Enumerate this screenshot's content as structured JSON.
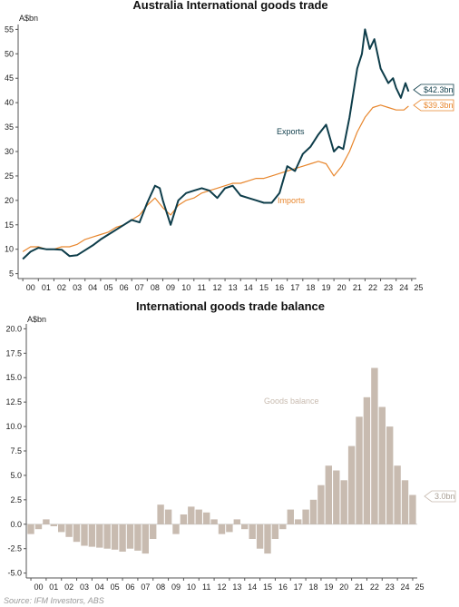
{
  "source": "Source: IFM Investors, ABS",
  "colors": {
    "exports": "#0e3d4a",
    "imports": "#e8872e",
    "balance": "#c8bbb0",
    "axis": "#555555"
  },
  "chart_data": [
    {
      "type": "line",
      "title": "Australia International goods trade",
      "ylabel": "A$bn",
      "ylim": [
        4,
        56
      ],
      "yticks": [
        5,
        10,
        15,
        20,
        25,
        30,
        35,
        40,
        45,
        50,
        55
      ],
      "xlim": [
        1999.7,
        2025.3
      ],
      "xtick_labels": [
        "00",
        "01",
        "02",
        "03",
        "04",
        "05",
        "06",
        "07",
        "08",
        "09",
        "10",
        "11",
        "12",
        "13",
        "14",
        "15",
        "16",
        "17",
        "18",
        "19",
        "20",
        "21",
        "22",
        "23",
        "24",
        "25"
      ],
      "series": [
        {
          "name": "Exports",
          "end_label": "$42.3bn",
          "x": [
            2000.0,
            2000.5,
            2001.0,
            2001.5,
            2002.0,
            2002.5,
            2003.0,
            2003.5,
            2004.0,
            2004.5,
            2005.0,
            2005.5,
            2006.0,
            2006.5,
            2007.0,
            2007.5,
            2008.0,
            2008.5,
            2008.8,
            2009.0,
            2009.5,
            2010.0,
            2010.5,
            2011.0,
            2011.5,
            2012.0,
            2012.5,
            2013.0,
            2013.5,
            2014.0,
            2014.5,
            2015.0,
            2015.5,
            2016.0,
            2016.5,
            2017.0,
            2017.5,
            2018.0,
            2018.5,
            2019.0,
            2019.5,
            2020.0,
            2020.3,
            2020.6,
            2021.0,
            2021.5,
            2021.8,
            2022.0,
            2022.3,
            2022.6,
            2023.0,
            2023.5,
            2023.8,
            2024.0,
            2024.3,
            2024.6,
            2024.8
          ],
          "values": [
            8.0,
            9.5,
            10.3,
            10.0,
            10.0,
            9.9,
            8.6,
            8.8,
            9.8,
            10.8,
            12.0,
            13.0,
            14.0,
            15.0,
            16.0,
            15.5,
            19.5,
            23.0,
            22.5,
            20.0,
            15.0,
            20.0,
            21.5,
            22.0,
            22.5,
            22.0,
            20.5,
            22.5,
            23.0,
            21.0,
            20.5,
            20.0,
            19.5,
            19.5,
            21.5,
            27.0,
            26.0,
            29.5,
            31.0,
            33.5,
            35.5,
            30.0,
            31.0,
            30.5,
            37.0,
            47.0,
            50.0,
            55.0,
            51.0,
            53.0,
            47.0,
            44.0,
            45.0,
            43.0,
            41.0,
            44.0,
            42.3
          ]
        },
        {
          "name": "Imports",
          "end_label": "$39.3bn",
          "x": [
            2000.0,
            2000.5,
            2001.0,
            2001.5,
            2002.0,
            2002.5,
            2003.0,
            2003.5,
            2004.0,
            2004.5,
            2005.0,
            2005.5,
            2006.0,
            2006.5,
            2007.0,
            2007.5,
            2008.0,
            2008.5,
            2009.0,
            2009.5,
            2010.0,
            2010.5,
            2011.0,
            2011.5,
            2012.0,
            2012.5,
            2013.0,
            2013.5,
            2014.0,
            2014.5,
            2015.0,
            2015.5,
            2016.0,
            2016.5,
            2017.0,
            2017.5,
            2018.0,
            2018.5,
            2019.0,
            2019.5,
            2020.0,
            2020.5,
            2021.0,
            2021.5,
            2022.0,
            2022.5,
            2023.0,
            2023.5,
            2024.0,
            2024.5,
            2024.8
          ],
          "values": [
            9.5,
            10.5,
            10.5,
            10.0,
            10.0,
            10.5,
            10.5,
            11.0,
            12.0,
            12.5,
            13.0,
            13.5,
            14.5,
            15.0,
            16.0,
            17.0,
            19.0,
            20.5,
            18.5,
            17.0,
            19.0,
            20.0,
            20.5,
            21.5,
            22.0,
            22.5,
            23.0,
            23.5,
            23.5,
            24.0,
            24.5,
            24.5,
            25.0,
            25.5,
            26.0,
            26.5,
            27.0,
            27.5,
            28.0,
            27.5,
            25.0,
            27.0,
            30.0,
            34.0,
            37.0,
            39.0,
            39.5,
            39.0,
            38.5,
            38.5,
            39.3
          ]
        }
      ]
    },
    {
      "type": "bar",
      "title": "International goods trade balance",
      "ylabel": "A$bn",
      "ylim": [
        -5.5,
        20.5
      ],
      "yticks": [
        -5.0,
        -2.5,
        0.0,
        2.5,
        5.0,
        7.5,
        10.0,
        12.5,
        15.0,
        17.5,
        20.0
      ],
      "xlim": [
        1999.7,
        2025.3
      ],
      "xtick_labels": [
        "00",
        "01",
        "02",
        "03",
        "04",
        "05",
        "06",
        "07",
        "08",
        "09",
        "10",
        "11",
        "12",
        "13",
        "14",
        "15",
        "16",
        "17",
        "18",
        "19",
        "20",
        "21",
        "22",
        "23",
        "24",
        "25"
      ],
      "series": [
        {
          "name": "Goods balance",
          "end_label": "3.0bn",
          "x": [
            2000.0,
            2000.5,
            2001.0,
            2001.5,
            2002.0,
            2002.5,
            2003.0,
            2003.5,
            2004.0,
            2004.5,
            2005.0,
            2005.5,
            2006.0,
            2006.5,
            2007.0,
            2007.5,
            2008.0,
            2008.5,
            2009.0,
            2009.5,
            2010.0,
            2010.5,
            2011.0,
            2011.5,
            2012.0,
            2012.5,
            2013.0,
            2013.5,
            2014.0,
            2014.5,
            2015.0,
            2015.5,
            2016.0,
            2016.5,
            2017.0,
            2017.5,
            2018.0,
            2018.5,
            2019.0,
            2019.5,
            2020.0,
            2020.5,
            2021.0,
            2021.5,
            2022.0,
            2022.5,
            2023.0,
            2023.5,
            2024.0,
            2024.5,
            2025.0
          ],
          "values": [
            -1.0,
            -0.5,
            0.5,
            -0.2,
            -0.8,
            -1.3,
            -1.8,
            -2.2,
            -2.3,
            -2.4,
            -2.5,
            -2.6,
            -2.8,
            -2.5,
            -2.7,
            -3.0,
            -1.5,
            2.0,
            1.5,
            -1.0,
            1.0,
            1.8,
            1.5,
            1.2,
            0.5,
            -1.0,
            -0.8,
            0.5,
            -0.5,
            -1.5,
            -2.5,
            -3.0,
            -1.5,
            -0.5,
            1.5,
            0.5,
            1.5,
            2.5,
            4.0,
            6.0,
            5.5,
            4.5,
            8.0,
            11.0,
            13.0,
            16.0,
            12.0,
            10.0,
            6.0,
            4.5,
            3.0
          ]
        }
      ]
    }
  ]
}
